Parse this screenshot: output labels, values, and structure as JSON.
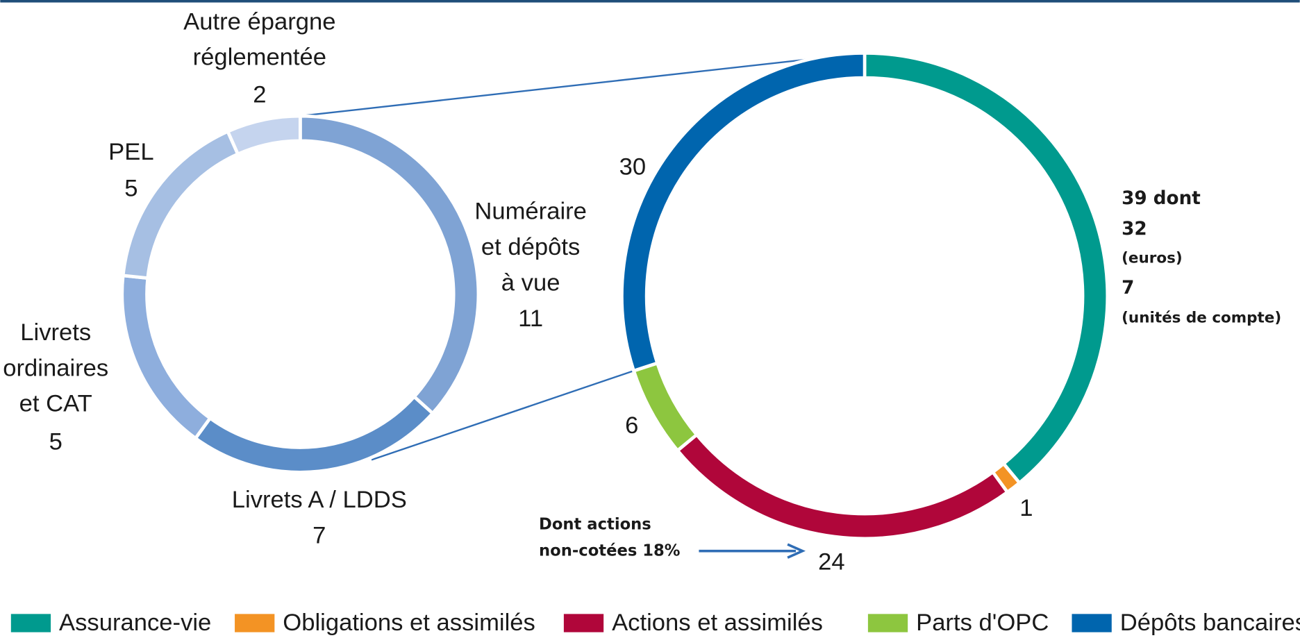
{
  "chart_data": [
    {
      "type": "pie",
      "donut": true,
      "categories": [
        "Numéraire\net dépôts\nà vue",
        "Livrets A / LDDS",
        "Livrets\nordinaires\net CAT",
        "PEL",
        "Autre épargne\nréglementée"
      ],
      "values": [
        11,
        7,
        5,
        5,
        2
      ],
      "colors": [
        "#7fa3d4",
        "#5b8dc8",
        "#8eaedd",
        "#a6bfe3",
        "#c5d4ee"
      ]
    },
    {
      "type": "pie",
      "donut": true,
      "categories": [
        "Assurance-vie",
        "Obligations et assimilés",
        "Actions et assimilés",
        "Parts d'OPC",
        "Dépôts bancaires"
      ],
      "values": [
        39,
        1,
        24,
        6,
        30
      ],
      "value_labels": [
        "39 dont",
        "1",
        "24",
        "6",
        "30"
      ],
      "breakdown": [
        {
          "value": 32,
          "label": "(euros)"
        },
        {
          "value": 7,
          "label": "(unités de compte)"
        }
      ],
      "annotation": "Dont actions\nnon-cotées 18%",
      "colors": [
        "#009a8e",
        "#f39324",
        "#b0063a",
        "#8dc63f",
        "#0065ae"
      ],
      "legend": "bottom"
    }
  ]
}
